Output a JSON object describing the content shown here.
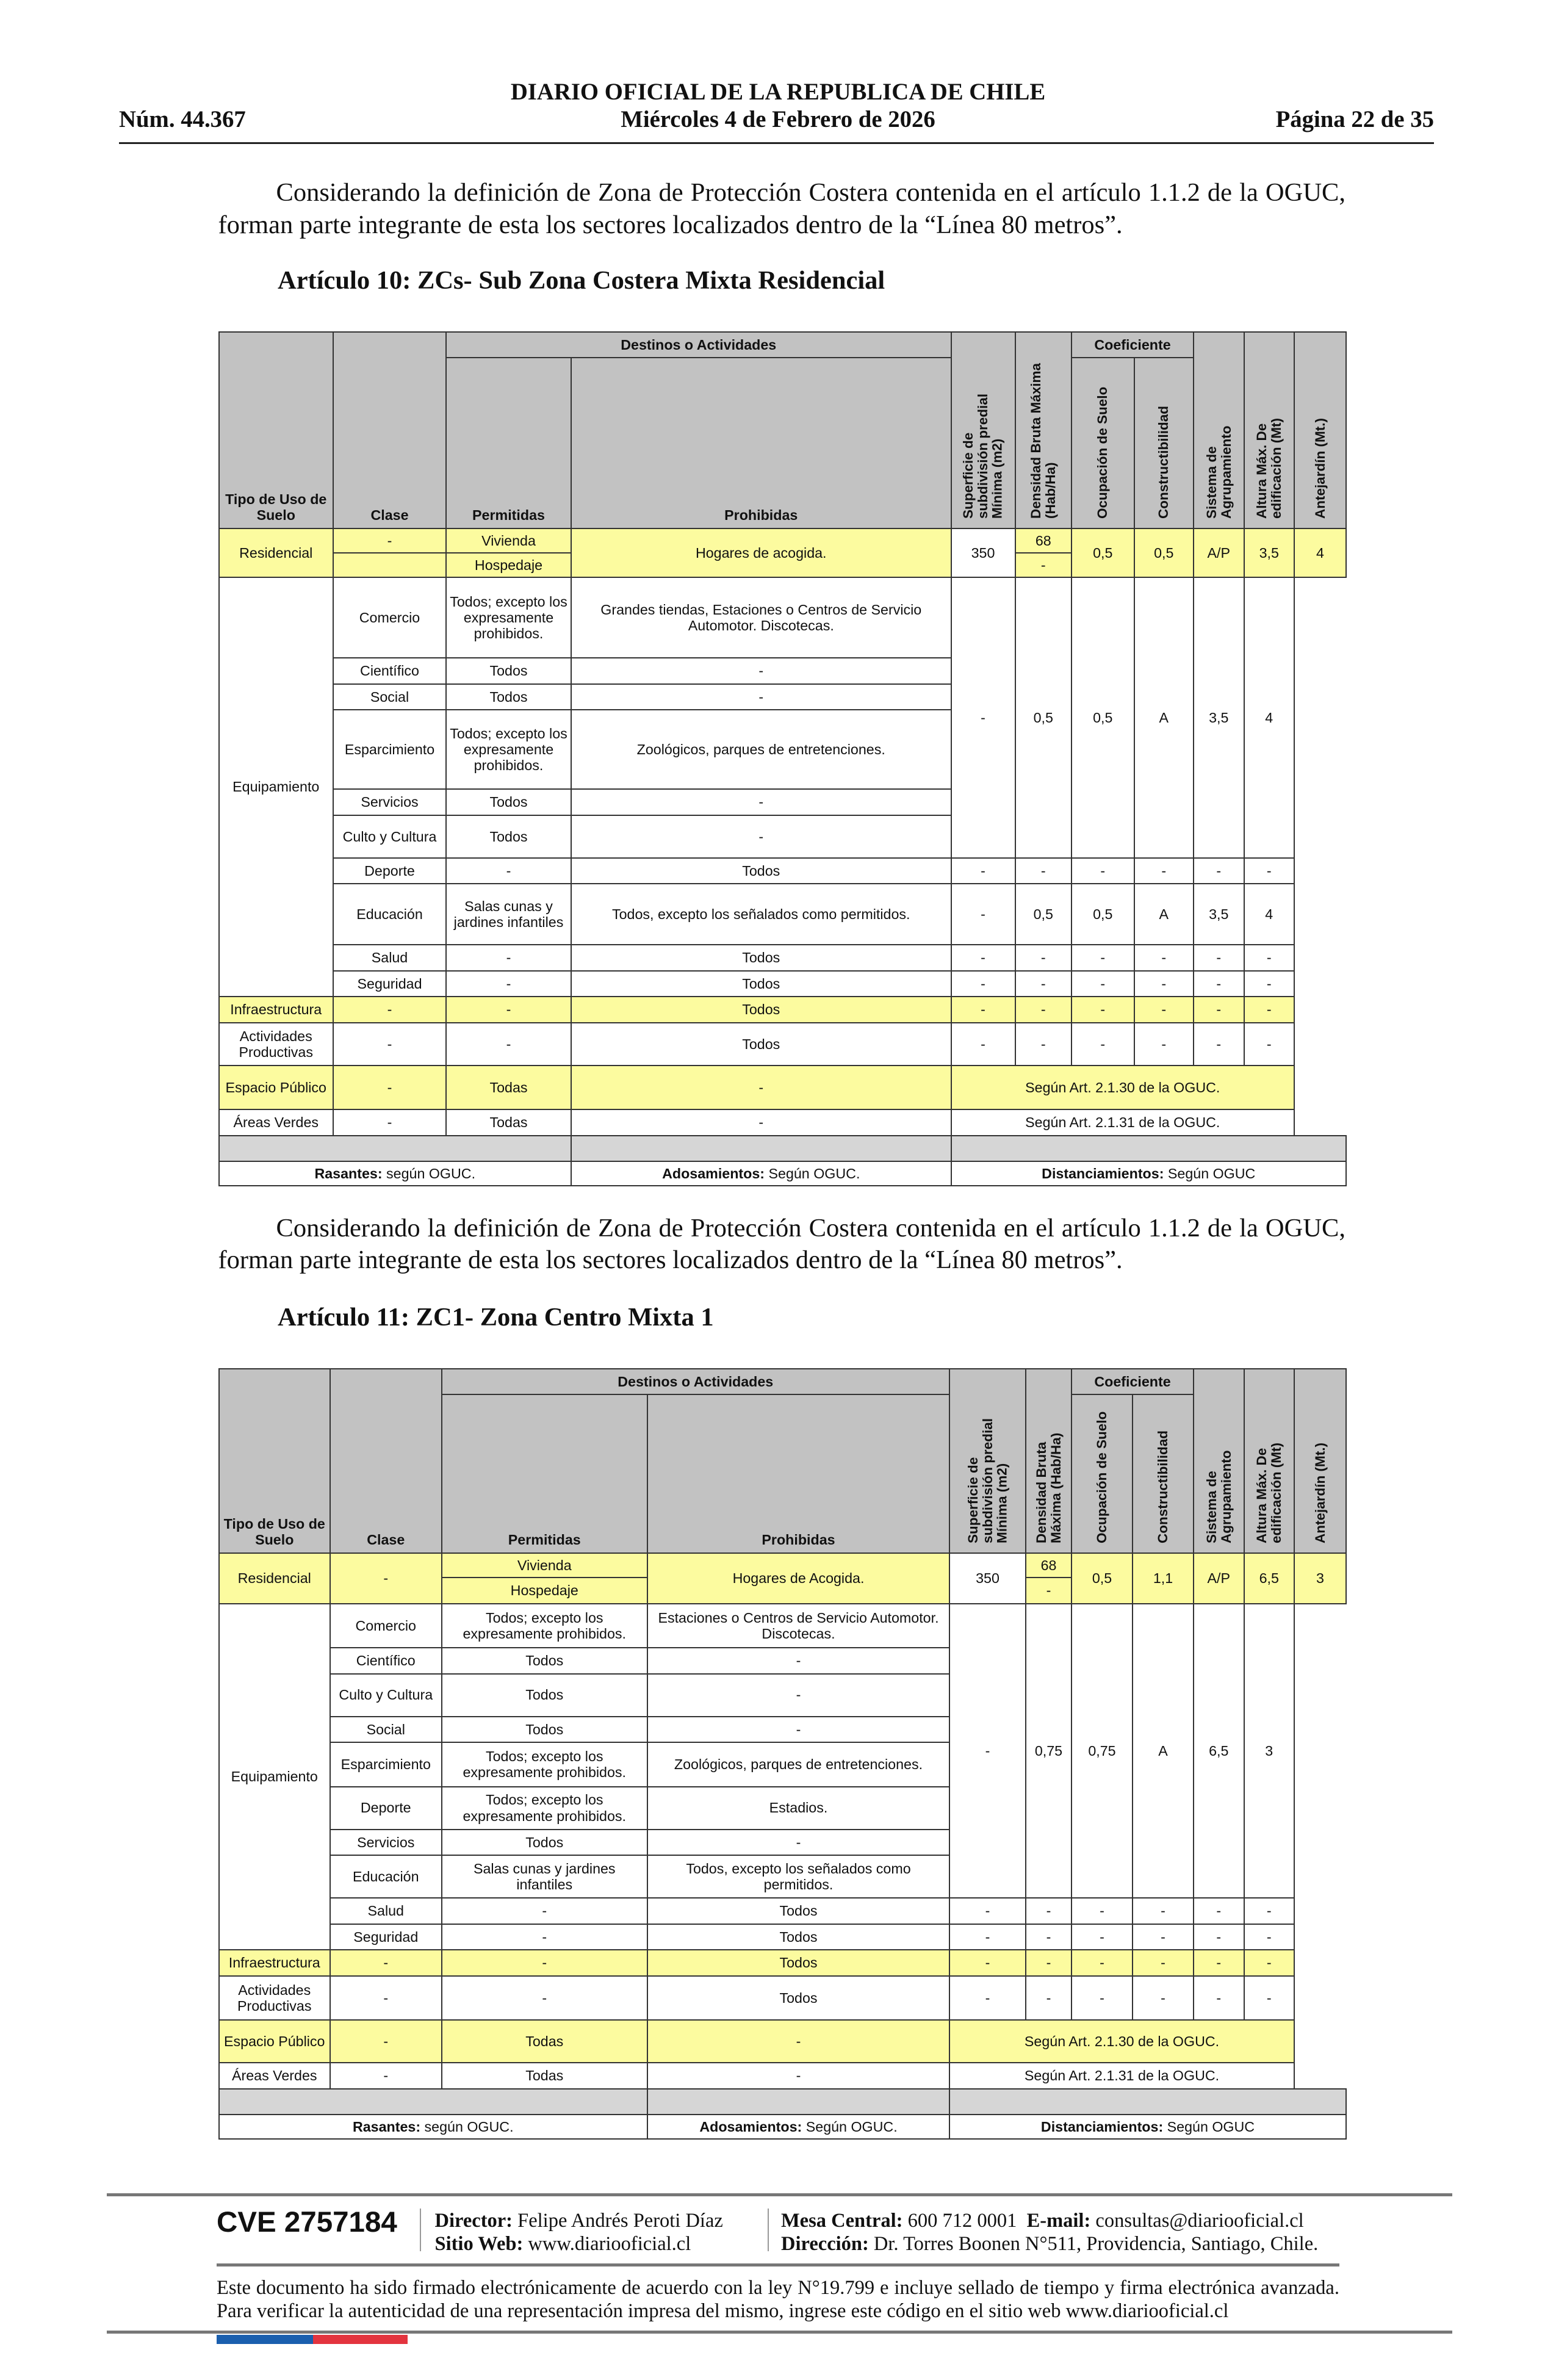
{
  "header": {
    "title": "DIARIO OFICIAL DE LA REPUBLICA DE CHILE",
    "date": "Miércoles 4 de Febrero de 2026",
    "number": "Núm. 44.367",
    "page": "Página 22 de 35"
  },
  "para1": "Considerando la definición de Zona de Protección Costera contenida en el artículo 1.1.2 de la OGUC, forman parte integrante de esta los sectores localizados dentro de la “Línea 80 metros”.",
  "art10": "Artículo 10: ZCs- Sub Zona Costera Mixta Residencial",
  "para2": "Considerando la definición de Zona de Protección Costera contenida en el artículo 1.1.2 de la OGUC, forman parte integrante de esta los sectores localizados dentro de la “Línea 80 metros”.",
  "art11": "Artículo 11: ZC1- Zona Centro Mixta 1",
  "colors": {
    "header_gray": "#c2c2c2",
    "highlight_yellow": "#fcfb9f",
    "flag_blue": "#1a5fae",
    "flag_red": "#e3343f"
  },
  "th": {
    "destinos": "Destinos o Actividades",
    "coeficiente": "Coeficiente",
    "tipo": "Tipo de Uso de Suelo",
    "clase": "Clase",
    "permitidas": "Permitidas",
    "prohibidas": "Prohibidas",
    "superficie": "Superficie de subdivisión predial Mínima (m2)",
    "densidad": "Densidad Bruta Máxima (Hab/Ha)",
    "ocupacion": "Ocupación de Suelo",
    "constructibilidad": "Constructibilidad",
    "sistema": "Sistema de Agrupamiento",
    "altura": "Altura Máx. De edificación (Mt)",
    "antejardin": "Antejardín (Mt.)"
  },
  "t1": {
    "superficie": "350",
    "res": {
      "tipo": "Residencial",
      "clase": "-",
      "perm1": "Vivienda",
      "perm2": "Hospedaje",
      "prohib": "Hogares de acogida.",
      "dens1": "68",
      "dens2": "-",
      "vals": [
        "0,5",
        "0,5",
        "A/P",
        "3,5",
        "4"
      ]
    },
    "equip": "Equipamiento",
    "block": [
      "-",
      "0,5",
      "0,5",
      "A",
      "3,5",
      "4"
    ],
    "rows": [
      {
        "clase": "Comercio",
        "perm": "Todos; excepto los expresamente prohibidos.",
        "prohib": "Grandes tiendas, Estaciones o Centros de Servicio Automotor. Discotecas."
      },
      {
        "clase": "Científico",
        "perm": "Todos",
        "prohib": "-"
      },
      {
        "clase": "Social",
        "perm": "Todos",
        "prohib": "-"
      },
      {
        "clase": "Esparcimiento",
        "perm": "Todos; excepto los expresamente prohibidos.",
        "prohib": "Zoológicos, parques de entretenciones."
      },
      {
        "clase": "Servicios",
        "perm": "Todos",
        "prohib": "-"
      },
      {
        "clase": "Culto y Cultura",
        "perm": "Todos",
        "prohib": "-"
      },
      {
        "clase": "Deporte",
        "perm": "-",
        "prohib": "Todos",
        "vals": [
          "-",
          "-",
          "-",
          "-",
          "-",
          "-"
        ]
      },
      {
        "clase": "Educación",
        "perm": "Salas cunas y jardines infantiles",
        "prohib": "Todos, excepto los señalados como permitidos.",
        "vals": [
          "-",
          "0,5",
          "0,5",
          "A",
          "3,5",
          "4"
        ]
      },
      {
        "clase": "Salud",
        "perm": "-",
        "prohib": "Todos",
        "vals": [
          "-",
          "-",
          "-",
          "-",
          "-",
          "-"
        ]
      },
      {
        "clase": "Seguridad",
        "perm": "-",
        "prohib": "Todos",
        "vals": [
          "-",
          "-",
          "-",
          "-",
          "-",
          "-"
        ]
      }
    ],
    "infra": {
      "tipo": "Infraestructura",
      "clase": "-",
      "perm": "-",
      "prohib": "Todos",
      "vals": [
        "-",
        "-",
        "-",
        "-",
        "-",
        "-"
      ]
    },
    "actprod": {
      "tipo": "Actividades Productivas",
      "clase": "-",
      "perm": "-",
      "prohib": "Todos",
      "vals": [
        "-",
        "-",
        "-",
        "-",
        "-",
        "-"
      ]
    },
    "espacio": {
      "tipo": "Espacio Público",
      "clase": "-",
      "perm": "Todas",
      "prohib": "-",
      "segun": "Según Art. 2.1.30 de la OGUC."
    },
    "areas": {
      "tipo": "Áreas Verdes",
      "clase": "-",
      "perm": "Todas",
      "prohib": "-",
      "segun": "Según Art. 2.1.31 de la OGUC."
    },
    "foot": {
      "rasantes_k": "Rasantes:",
      "rasantes_v": " según OGUC.",
      "adosamientos_k": "Adosamientos:",
      "adosamientos_v": " Según OGUC.",
      "distanciamientos_k": "Distanciamientos:",
      "distanciamientos_v": " Según OGUC"
    }
  },
  "t2": {
    "superficie": "350",
    "res": {
      "tipo": "Residencial",
      "clase": "-",
      "perm1": "Vivienda",
      "perm2": "Hospedaje",
      "prohib": "Hogares de Acogida.",
      "dens1": "68",
      "dens2": "-",
      "vals": [
        "0,5",
        "1,1",
        "A/P",
        "6,5",
        "3"
      ]
    },
    "equip": "Equipamiento",
    "block": [
      "-",
      "0,75",
      "0,75",
      "A",
      "6,5",
      "3"
    ],
    "rows": [
      {
        "clase": "Comercio",
        "perm": "Todos; excepto los expresamente prohibidos.",
        "prohib": "Estaciones o Centros de Servicio Automotor. Discotecas."
      },
      {
        "clase": "Científico",
        "perm": "Todos",
        "prohib": "-"
      },
      {
        "clase": "Culto y Cultura",
        "perm": "Todos",
        "prohib": "-"
      },
      {
        "clase": "Social",
        "perm": "Todos",
        "prohib": "-"
      },
      {
        "clase": "Esparcimiento",
        "perm": "Todos; excepto los expresamente prohibidos.",
        "prohib": "Zoológicos, parques de entretenciones."
      },
      {
        "clase": "Deporte",
        "perm": "Todos; excepto los expresamente prohibidos.",
        "prohib": "Estadios."
      },
      {
        "clase": "Servicios",
        "perm": "Todos",
        "prohib": "-"
      },
      {
        "clase": "Educación",
        "perm": "Salas cunas y jardines infantiles",
        "prohib": "Todos, excepto los señalados como permitidos."
      },
      {
        "clase": "Salud",
        "perm": "-",
        "prohib": "Todos",
        "vals": [
          "-",
          "-",
          "-",
          "-",
          "-",
          "-"
        ]
      },
      {
        "clase": "Seguridad",
        "perm": "-",
        "prohib": "Todos",
        "vals": [
          "-",
          "-",
          "-",
          "-",
          "-",
          "-"
        ]
      }
    ],
    "infra": {
      "tipo": "Infraestructura",
      "clase": "-",
      "perm": "-",
      "prohib": "Todos",
      "vals": [
        "-",
        "-",
        "-",
        "-",
        "-",
        "-"
      ]
    },
    "actprod": {
      "tipo": "Actividades Productivas",
      "clase": "-",
      "perm": "-",
      "prohib": "Todos",
      "vals": [
        "-",
        "-",
        "-",
        "-",
        "-",
        "-"
      ]
    },
    "espacio": {
      "tipo": "Espacio Público",
      "clase": "-",
      "perm": "Todas",
      "prohib": "-",
      "segun": "Según Art. 2.1.30 de la OGUC."
    },
    "areas": {
      "tipo": "Áreas Verdes",
      "clase": "-",
      "perm": "Todas",
      "prohib": "-",
      "segun": "Según Art. 2.1.31 de la OGUC."
    },
    "foot": {
      "rasantes_k": "Rasantes:",
      "rasantes_v": " según OGUC.",
      "adosamientos_k": "Adosamientos:",
      "adosamientos_v": " Según OGUC.",
      "distanciamientos_k": "Distanciamientos:",
      "distanciamientos_v": " Según OGUC"
    }
  },
  "footer": {
    "cve": "CVE 2757184",
    "director_k": "Director:",
    "director_v": " Felipe Andrés Peroti Díaz",
    "web_k": "Sitio Web:",
    "web_v": " www.diariooficial.cl",
    "mesa_k": "Mesa Central:",
    "mesa_v": " 600 712 0001",
    "email_k": "E-mail:",
    "email_v": " consultas@diariooficial.cl",
    "dir_k": "Dirección:",
    "dir_v": " Dr. Torres Boonen N°511, Providencia, Santiago, Chile.",
    "disclaimer": "Este documento ha sido firmado electrónicamente de acuerdo con la ley N°19.799 e incluye sellado de tiempo y firma electrónica avanzada. Para verificar la autenticidad de una representación impresa del mismo, ingrese este código en el sitio web www.diariooficial.cl"
  }
}
